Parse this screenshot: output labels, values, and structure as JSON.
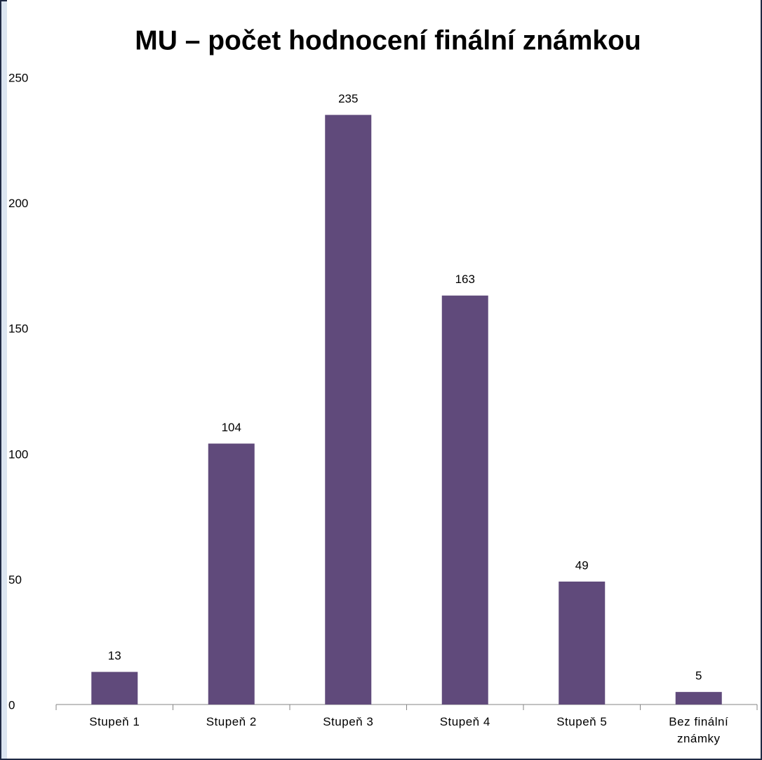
{
  "chart_data": {
    "type": "bar",
    "title": "MU – počet hodnocení finální známkou",
    "categories": [
      "Stupeň 1",
      "Stupeň 2",
      "Stupeň 3",
      "Stupeň 4",
      "Stupeň 5",
      "Bez finální známky"
    ],
    "values": [
      13,
      104,
      235,
      163,
      49,
      5
    ],
    "color": "#604a7b",
    "ylim": [
      0,
      250
    ],
    "yticks": [
      0,
      50,
      100,
      150,
      200,
      250
    ],
    "grid": false
  }
}
